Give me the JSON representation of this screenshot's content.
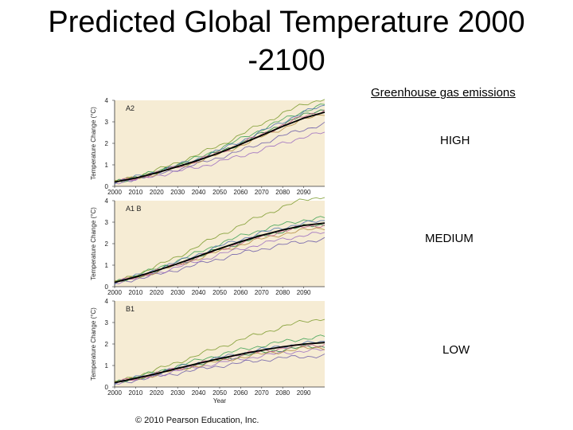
{
  "slide": {
    "title_line1": "Predicted Global Temperature 2000",
    "title_line2": "-2100",
    "side_heading": "Greenhouse gas emissions",
    "levels": [
      "HIGH",
      "MEDIUM",
      "LOW"
    ],
    "copyright": "© 2010 Pearson Education, Inc."
  },
  "colors": {
    "panel_bg": "#f6ecd4",
    "mean_line": "#000000"
  },
  "chart_data": [
    {
      "type": "line",
      "title": "A2",
      "ylabel": "Temperature Change (°C)",
      "xlabel": "",
      "xlim": [
        2000,
        2100
      ],
      "ylim": [
        0,
        4
      ],
      "xticks": [
        2000,
        2010,
        2020,
        2030,
        2040,
        2050,
        2060,
        2070,
        2080,
        2090
      ],
      "yticks": [
        0,
        1,
        2,
        3,
        4
      ],
      "grid": false,
      "x": [
        2000,
        2010,
        2020,
        2030,
        2040,
        2050,
        2060,
        2070,
        2080,
        2090,
        2100
      ],
      "series": [
        {
          "values": [
            0.2,
            0.4,
            0.65,
            0.95,
            1.25,
            1.6,
            2.0,
            2.45,
            2.9,
            3.3,
            3.6
          ]
        },
        {
          "values": [
            0.2,
            0.45,
            0.75,
            1.1,
            1.5,
            1.9,
            2.4,
            2.9,
            3.4,
            3.8,
            4.1
          ]
        },
        {
          "values": [
            0.2,
            0.35,
            0.55,
            0.8,
            1.05,
            1.35,
            1.65,
            2.0,
            2.35,
            2.65,
            2.9
          ]
        },
        {
          "values": [
            0.2,
            0.4,
            0.7,
            1.0,
            1.35,
            1.75,
            2.2,
            2.65,
            3.1,
            3.5,
            3.8
          ]
        },
        {
          "values": [
            0.2,
            0.3,
            0.5,
            0.7,
            0.9,
            1.15,
            1.4,
            1.7,
            2.0,
            2.3,
            2.5
          ]
        },
        {
          "values": [
            0.2,
            0.42,
            0.68,
            0.98,
            1.3,
            1.68,
            2.1,
            2.55,
            3.0,
            3.45,
            3.75
          ]
        },
        {
          "values": [
            0.2,
            0.38,
            0.6,
            0.88,
            1.18,
            1.5,
            1.9,
            2.3,
            2.7,
            3.1,
            3.4
          ]
        },
        {
          "values": [
            0.2,
            0.38,
            0.62,
            0.92,
            1.22,
            1.58,
            1.98,
            2.4,
            2.85,
            3.25,
            3.55
          ]
        }
      ]
    },
    {
      "type": "line",
      "title": "A1 B",
      "ylabel": "Temperature Change (°C)",
      "xlabel": "",
      "xlim": [
        2000,
        2100
      ],
      "ylim": [
        0,
        4
      ],
      "xticks": [
        2000,
        2010,
        2020,
        2030,
        2040,
        2050,
        2060,
        2070,
        2080,
        2090
      ],
      "yticks": [
        0,
        1,
        2,
        3,
        4
      ],
      "grid": false,
      "x": [
        2000,
        2010,
        2020,
        2030,
        2040,
        2050,
        2060,
        2070,
        2080,
        2090,
        2100
      ],
      "series": [
        {
          "values": [
            0.2,
            0.45,
            0.75,
            1.05,
            1.4,
            1.75,
            2.05,
            2.35,
            2.6,
            2.8,
            2.9
          ]
        },
        {
          "values": [
            0.2,
            0.55,
            0.95,
            1.4,
            1.9,
            2.4,
            2.85,
            3.3,
            3.7,
            4.05,
            4.2
          ]
        },
        {
          "values": [
            0.2,
            0.35,
            0.55,
            0.8,
            1.05,
            1.3,
            1.55,
            1.75,
            1.95,
            2.1,
            2.2
          ]
        },
        {
          "values": [
            0.2,
            0.5,
            0.85,
            1.2,
            1.6,
            2.0,
            2.35,
            2.65,
            2.9,
            3.1,
            3.2
          ]
        },
        {
          "values": [
            0.2,
            0.4,
            0.65,
            0.9,
            1.2,
            1.5,
            1.75,
            2.0,
            2.2,
            2.4,
            2.5
          ]
        },
        {
          "values": [
            0.2,
            0.48,
            0.8,
            1.15,
            1.52,
            1.88,
            2.2,
            2.5,
            2.75,
            2.95,
            3.05
          ]
        },
        {
          "values": [
            0.2,
            0.42,
            0.7,
            1.0,
            1.32,
            1.65,
            1.95,
            2.22,
            2.45,
            2.62,
            2.75
          ]
        },
        {
          "values": [
            0.2,
            0.44,
            0.73,
            1.04,
            1.38,
            1.72,
            2.04,
            2.33,
            2.58,
            2.78,
            2.88
          ]
        }
      ]
    },
    {
      "type": "line",
      "title": "B1",
      "ylabel": "Temperature Change (°C)",
      "xlabel": "Year",
      "xlim": [
        2000,
        2100
      ],
      "ylim": [
        0,
        4
      ],
      "xticks": [
        2000,
        2010,
        2020,
        2030,
        2040,
        2050,
        2060,
        2070,
        2080,
        2090
      ],
      "yticks": [
        0,
        1,
        2,
        3,
        4
      ],
      "grid": false,
      "x": [
        2000,
        2010,
        2020,
        2030,
        2040,
        2050,
        2060,
        2070,
        2080,
        2090,
        2100
      ],
      "series": [
        {
          "values": [
            0.2,
            0.4,
            0.6,
            0.85,
            1.05,
            1.25,
            1.45,
            1.6,
            1.75,
            1.85,
            1.9
          ]
        },
        {
          "values": [
            0.2,
            0.5,
            0.8,
            1.15,
            1.5,
            1.85,
            2.2,
            2.5,
            2.8,
            3.05,
            3.2
          ]
        },
        {
          "values": [
            0.2,
            0.32,
            0.48,
            0.65,
            0.82,
            0.98,
            1.12,
            1.25,
            1.35,
            1.42,
            1.45
          ]
        },
        {
          "values": [
            0.2,
            0.45,
            0.7,
            0.98,
            1.25,
            1.5,
            1.72,
            1.92,
            2.1,
            2.25,
            2.35
          ]
        },
        {
          "values": [
            0.2,
            0.36,
            0.55,
            0.75,
            0.95,
            1.12,
            1.3,
            1.45,
            1.58,
            1.68,
            1.72
          ]
        },
        {
          "values": [
            0.2,
            0.42,
            0.66,
            0.9,
            1.14,
            1.36,
            1.56,
            1.74,
            1.9,
            2.02,
            2.1
          ]
        },
        {
          "values": [
            0.2,
            0.38,
            0.58,
            0.8,
            1.0,
            1.2,
            1.38,
            1.53,
            1.67,
            1.78,
            1.84
          ]
        },
        {
          "values": [
            0.2,
            0.4,
            0.62,
            0.86,
            1.08,
            1.3,
            1.5,
            1.66,
            1.8,
            1.92,
            1.98
          ]
        }
      ]
    }
  ]
}
